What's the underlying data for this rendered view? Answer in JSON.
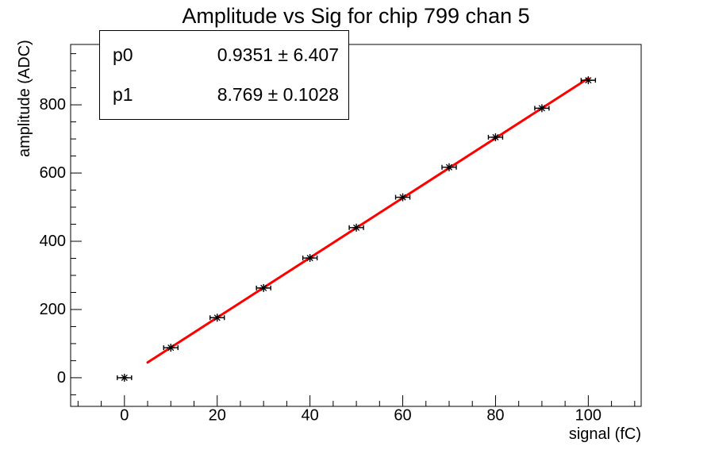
{
  "colors": {
    "background": "#ffffff",
    "frame": "#000000",
    "marker": "#000000",
    "fit_line": "#ff0000",
    "text": "#000000"
  },
  "stats_box": {
    "rows": [
      {
        "param": "p0",
        "value": "0.9351 ± 6.407"
      },
      {
        "param": "p1",
        "value": "8.769 ± 0.1028"
      }
    ]
  },
  "chart_data": {
    "type": "scatter",
    "title": "Amplitude vs Sig for chip 799 chan 5",
    "xlabel": "signal (fC)",
    "ylabel": "amplitude (ADC)",
    "x": [
      0,
      10,
      20,
      30,
      40,
      50,
      60,
      70,
      80,
      90,
      100
    ],
    "y": [
      0,
      88,
      176,
      263,
      351,
      440,
      529,
      617,
      705,
      790,
      872
    ],
    "x_error": 1.5,
    "marker": "asterisk",
    "legend_position": "none",
    "fit": {
      "name": "linear",
      "p0": 0.9351,
      "p1": 8.769,
      "range": [
        5,
        100
      ],
      "color": "#ff0000",
      "line_width": 3
    },
    "axes": {
      "xlim": [
        -11.6,
        111.4
      ],
      "ylim": [
        -84,
        977
      ],
      "x_major_ticks": [
        0,
        20,
        40,
        60,
        80,
        100
      ],
      "x_minor_range": [
        -10,
        110
      ],
      "x_minor_step": 5,
      "y_major_ticks": [
        0,
        200,
        400,
        600,
        800
      ],
      "y_minor_range": [
        -50,
        950
      ],
      "y_minor_step": 50,
      "grid": false,
      "ticks_inward": true
    }
  }
}
